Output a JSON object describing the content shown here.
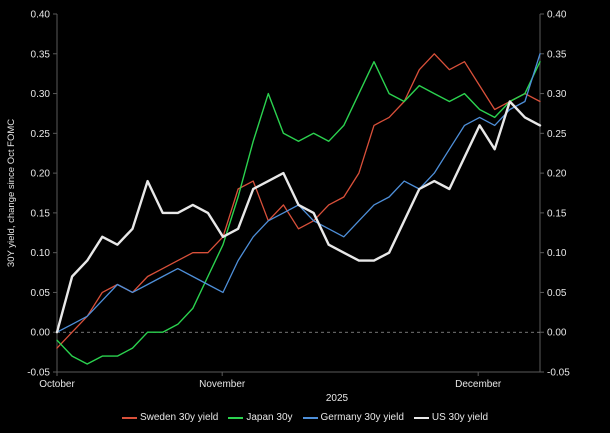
{
  "colors": {
    "background": "#000000",
    "axis": "#5a5a5a",
    "text": "#e6e6e6",
    "zero_line": "#9a9a9a"
  },
  "chart_data": {
    "type": "line",
    "title": "",
    "ylabel": "30Y yield, change since Oct FOMC",
    "x_axis_title": "2025",
    "ylim": [
      -0.05,
      0.4
    ],
    "y_ticks": [
      0.4,
      0.35,
      0.3,
      0.25,
      0.2,
      0.15,
      0.1,
      0.05,
      0.0,
      -0.05
    ],
    "y_ticks_both_sides": true,
    "zero_line_dashed": true,
    "grid": false,
    "legend_position": "bottom",
    "x_tick_labels": [
      {
        "label": "October",
        "pos": 0.0
      },
      {
        "label": "November",
        "pos": 0.342
      },
      {
        "label": "December",
        "pos": 0.872
      }
    ],
    "series": [
      {
        "id": "sweden",
        "label": "Sweden 30y yield",
        "color": "#d9503a",
        "stroke_width": 1.3,
        "values": [
          -0.02,
          0.0,
          0.02,
          0.05,
          0.06,
          0.05,
          0.07,
          0.08,
          0.09,
          0.1,
          0.1,
          0.12,
          0.18,
          0.19,
          0.14,
          0.16,
          0.13,
          0.14,
          0.16,
          0.17,
          0.2,
          0.26,
          0.27,
          0.29,
          0.33,
          0.35,
          0.33,
          0.34,
          0.31,
          0.28,
          0.29,
          0.3,
          0.29
        ]
      },
      {
        "id": "japan",
        "label": "Japan 30y",
        "color": "#2bd24f",
        "stroke_width": 1.4,
        "values": [
          -0.01,
          -0.03,
          -0.04,
          -0.03,
          -0.03,
          -0.02,
          0.0,
          0.0,
          0.01,
          0.03,
          0.07,
          0.11,
          0.17,
          0.24,
          0.3,
          0.25,
          0.24,
          0.25,
          0.24,
          0.26,
          0.3,
          0.34,
          0.3,
          0.29,
          0.31,
          0.3,
          0.29,
          0.3,
          0.28,
          0.27,
          0.29,
          0.3,
          0.34
        ]
      },
      {
        "id": "germany",
        "label": "Germany 30y yield",
        "color": "#4e8fd9",
        "stroke_width": 1.3,
        "values": [
          0.0,
          0.01,
          0.02,
          0.04,
          0.06,
          0.05,
          0.06,
          0.07,
          0.08,
          0.07,
          0.06,
          0.05,
          0.09,
          0.12,
          0.14,
          0.15,
          0.16,
          0.14,
          0.13,
          0.12,
          0.14,
          0.16,
          0.17,
          0.19,
          0.18,
          0.2,
          0.23,
          0.26,
          0.27,
          0.26,
          0.28,
          0.29,
          0.35
        ]
      },
      {
        "id": "us",
        "label": "US 30y yield",
        "color": "#e8e8e8",
        "stroke_width": 2.4,
        "values": [
          0.0,
          0.07,
          0.09,
          0.12,
          0.11,
          0.13,
          0.19,
          0.15,
          0.15,
          0.16,
          0.15,
          0.12,
          0.13,
          0.18,
          0.19,
          0.2,
          0.16,
          0.15,
          0.11,
          0.1,
          0.09,
          0.09,
          0.1,
          0.14,
          0.18,
          0.19,
          0.18,
          0.22,
          0.26,
          0.23,
          0.29,
          0.27,
          0.26
        ]
      }
    ]
  }
}
